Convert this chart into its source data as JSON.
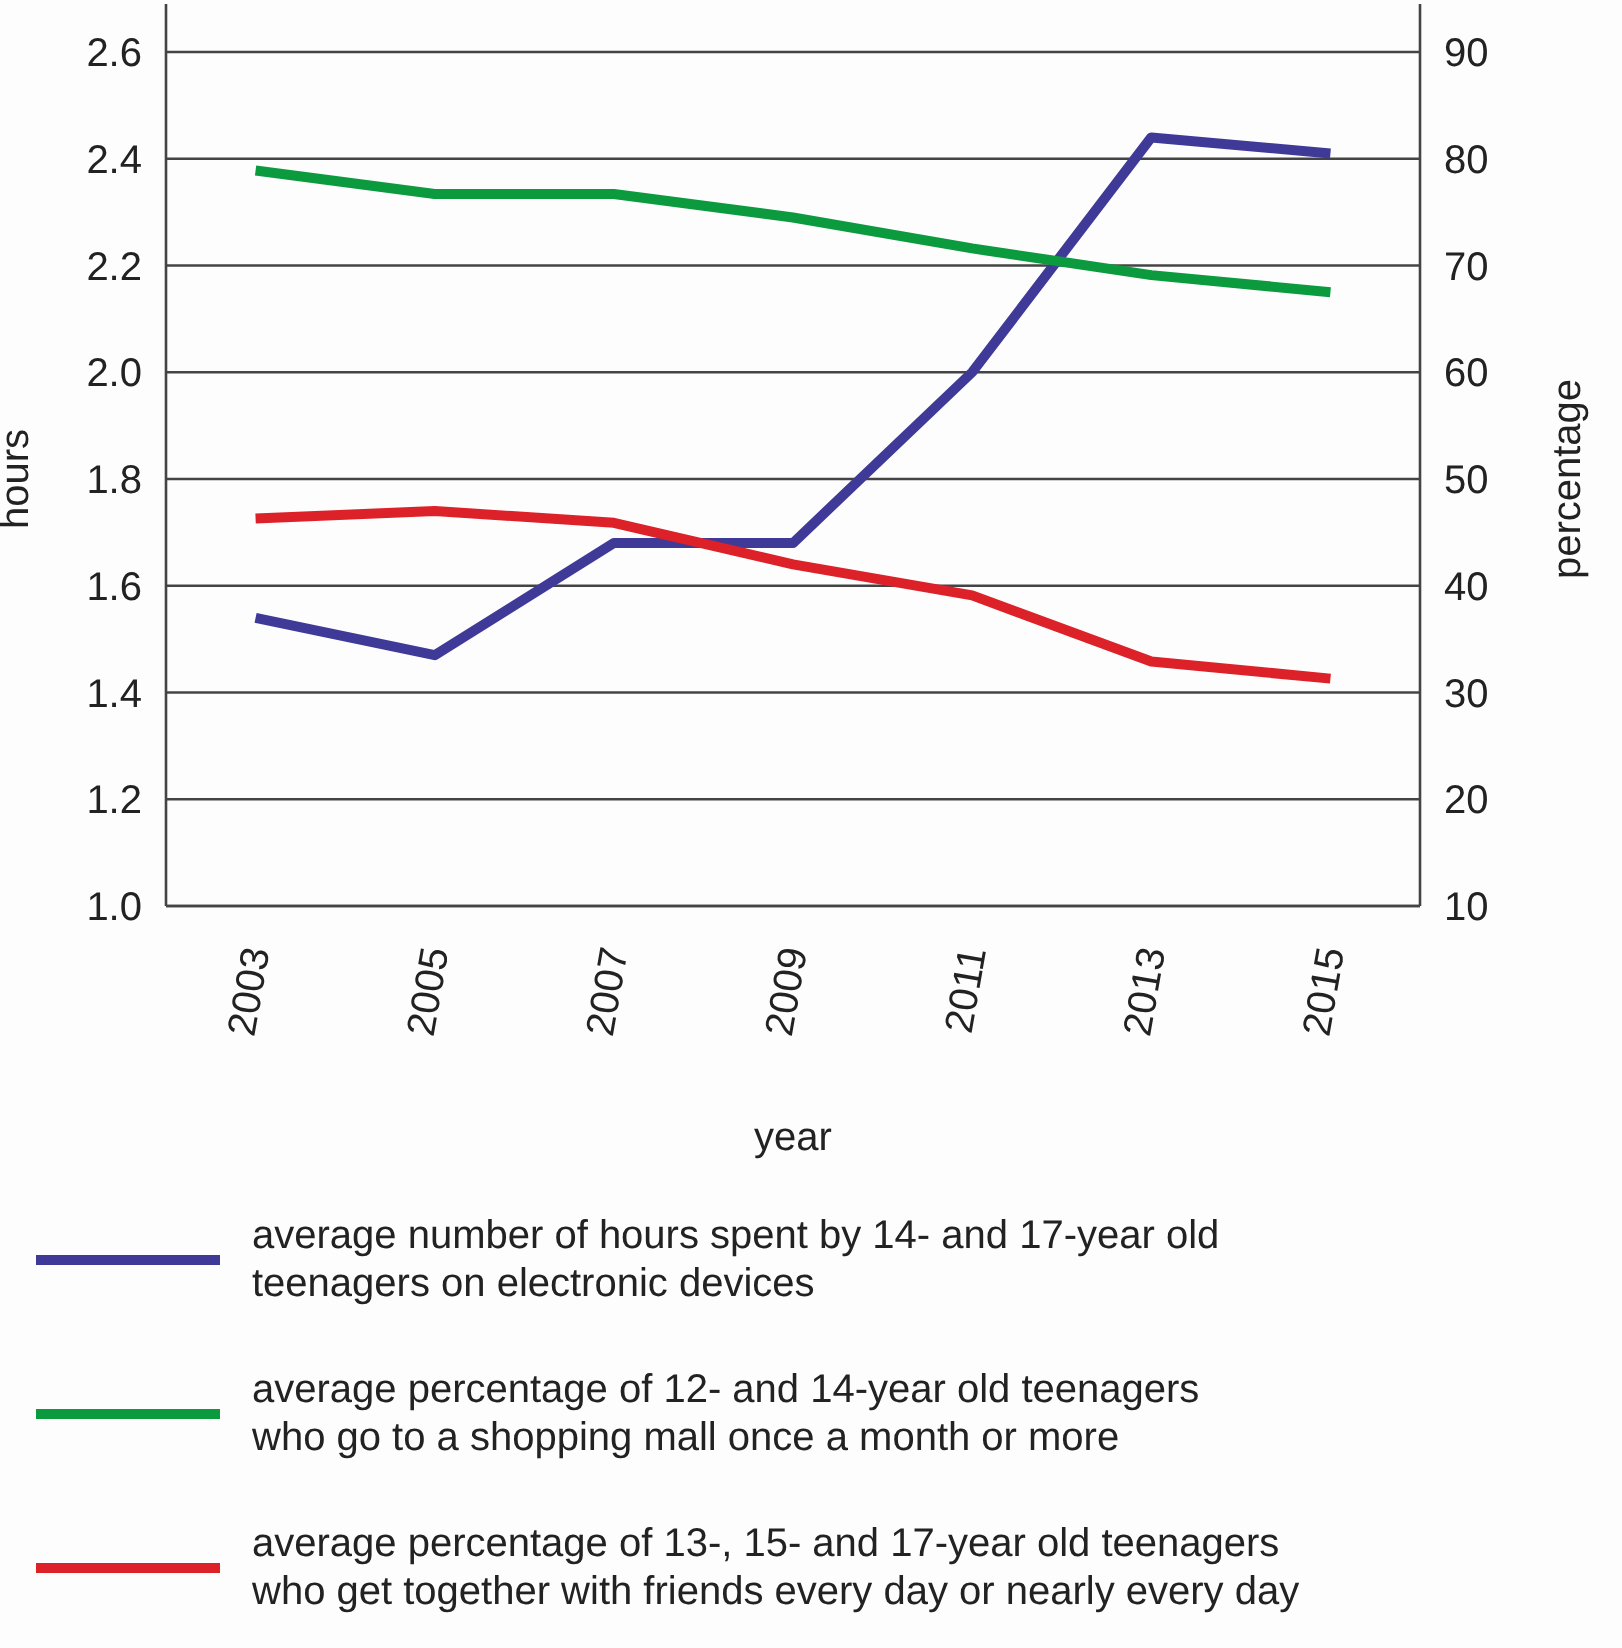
{
  "chart_data": {
    "type": "line",
    "xlabel": "year",
    "ylabel": "hours",
    "y2label": "percentage",
    "x": [
      2003,
      2005,
      2007,
      2009,
      2011,
      2013,
      2015
    ],
    "xlim": [
      2002,
      2016
    ],
    "xticks": [
      2003,
      2005,
      2007,
      2009,
      2011,
      2013,
      2015
    ],
    "ylim": [
      1.0,
      2.6
    ],
    "yticks": [
      {
        "value": 1.0,
        "label": "1.0"
      },
      {
        "value": 1.2,
        "label": "1.2"
      },
      {
        "value": 1.4,
        "label": "1.4"
      },
      {
        "value": 1.6,
        "label": "1.6"
      },
      {
        "value": 1.8,
        "label": "1.8"
      },
      {
        "value": 2.0,
        "label": "2.0"
      },
      {
        "value": 2.2,
        "label": "2.2"
      },
      {
        "value": 2.4,
        "label": "2.4"
      },
      {
        "value": 2.6,
        "label": "2.6"
      }
    ],
    "y2lim": [
      10,
      90
    ],
    "y2ticks": [
      10,
      20,
      30,
      40,
      50,
      60,
      70,
      80,
      90
    ],
    "grid": "y",
    "legend": "bottom",
    "marker": "none",
    "line_style": "solid",
    "series": [
      {
        "name": "average number of hours spent by 14- and 17-year old\nteenagers on electronic devices",
        "color": "#3f3a98",
        "values": [
          1.54,
          1.47,
          1.68,
          1.68,
          2.0,
          2.44,
          2.41
        ]
      },
      {
        "name": "average percentage of 12- and 14-year old teenagers\nwho go to a shopping mall once a month or more",
        "color": "#0c9a3f",
        "axis": "y2",
        "values": [
          78.9,
          76.7,
          76.7,
          74.5,
          71.6,
          69.1,
          67.5
        ]
      },
      {
        "name": "average percentage of 13-, 15- and 17-year old teenagers\nwho get together with friends every day or nearly every day",
        "color": "#dc2128",
        "axis": "y2",
        "values": [
          46.3,
          47.0,
          45.9,
          42.0,
          39.1,
          32.9,
          31.3
        ]
      }
    ]
  }
}
